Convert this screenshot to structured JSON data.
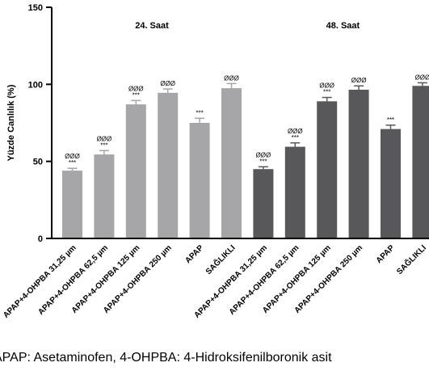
{
  "chart_data": {
    "type": "bar",
    "ylabel": "Yüzde Canlılık (%)",
    "xlabel": "",
    "ylim": [
      0,
      150
    ],
    "yticks": [
      0,
      50,
      100,
      150
    ],
    "grid": false,
    "colors": {
      "24. Saat": "#a6a6a8",
      "48. Saat": "#58585a",
      "axis": "#000000"
    },
    "groups": [
      {
        "name": "24. Saat",
        "series_index": 0
      },
      {
        "name": "48. Saat",
        "series_index": 1
      }
    ],
    "series": [
      {
        "name": "24. Saat",
        "categories": [
          "APAP+4-OHPBA 31,25 µm",
          "APAP+4-OHPBA 62,5 µm",
          "APAP+4-OHPBA 125 µm",
          "APAP+4-OHPBA 250 µm",
          "APAP",
          "SAĞLIKLI"
        ],
        "values": [
          44,
          54.5,
          87,
          94.5,
          75,
          97.5
        ],
        "errors": [
          1.5,
          2.5,
          2.5,
          2.5,
          3,
          3
        ],
        "significance": [
          [
            "ØØØ",
            "***"
          ],
          [
            "ØØØ",
            "***"
          ],
          [
            "ØØØ",
            "***"
          ],
          [
            "ØØØ"
          ],
          [
            "***"
          ],
          [
            "ØØØ"
          ]
        ]
      },
      {
        "name": "48. Saat",
        "categories": [
          "APAP+4-OHPBA 31,25 µm",
          "APAP+4-OHPBA 62,5 µm",
          "APAP+4-OHPBA 125 µm",
          "APAP+4-OHPBA 250 µm",
          "APAP",
          "SAĞLIKLI"
        ],
        "values": [
          45,
          59.5,
          89,
          96.5,
          71,
          99
        ],
        "errors": [
          1.5,
          2.5,
          2.5,
          2.5,
          2.5,
          2
        ],
        "significance": [
          [
            "ØØØ",
            "***"
          ],
          [
            "ØØØ",
            "***"
          ],
          [
            "ØØØ",
            "***"
          ],
          [
            "ØØØ"
          ],
          [
            "***"
          ],
          [
            "ØØØ"
          ]
        ]
      }
    ]
  },
  "caption": "APAP: Asetaminofen, 4-OHPBA: 4-Hidroksifenilboronik asit"
}
